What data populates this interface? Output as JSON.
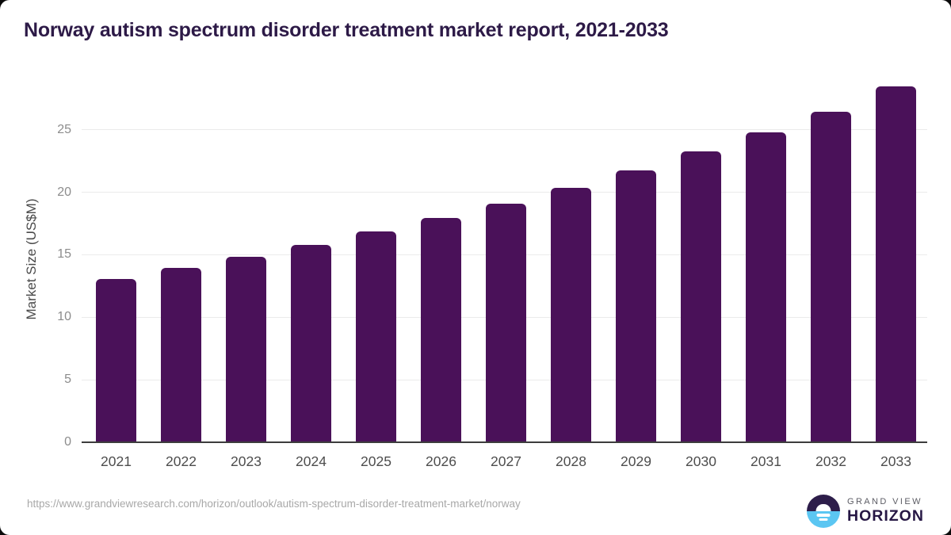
{
  "title": "Norway autism spectrum disorder treatment market report, 2021-2033",
  "chart_data": {
    "type": "bar",
    "title": "Norway autism spectrum disorder treatment market report, 2021-2033",
    "categories": [
      "2021",
      "2022",
      "2023",
      "2024",
      "2025",
      "2026",
      "2027",
      "2028",
      "2029",
      "2030",
      "2031",
      "2032",
      "2033"
    ],
    "values": [
      13.0,
      13.9,
      14.8,
      15.7,
      16.8,
      17.9,
      19.0,
      20.3,
      21.7,
      23.2,
      24.7,
      26.4,
      28.4
    ],
    "xlabel": "",
    "ylabel": "Market Size (US$M)",
    "yticks": [
      0,
      5,
      10,
      15,
      20,
      25
    ],
    "ylim": [
      0,
      29
    ],
    "grid": "horizontal",
    "legend": "none",
    "bar_color": "#4a1159"
  },
  "footer": {
    "source_url": "https://www.grandviewresearch.com/horizon/outlook/autism-spectrum-disorder-treatment-market/norway",
    "logo": {
      "line1": "GRAND VIEW",
      "line2": "HORIZON"
    }
  },
  "colors": {
    "title_text": "#2d1a47",
    "bar": "#4a1159",
    "axis_line": "#3d3d3d",
    "gridline": "#ebebeb",
    "x_tick_text": "#4d4d4d",
    "y_tick_text": "#8c8c8c",
    "y_axis_title_text": "#4a4a4a",
    "url_text": "#a8a8a8",
    "logo_dark_purple": "#2d1d4a",
    "logo_light_blue": "#5bc6f2",
    "logo_grandview_text": "#5c5c64",
    "logo_horizon_text": "#261744"
  }
}
